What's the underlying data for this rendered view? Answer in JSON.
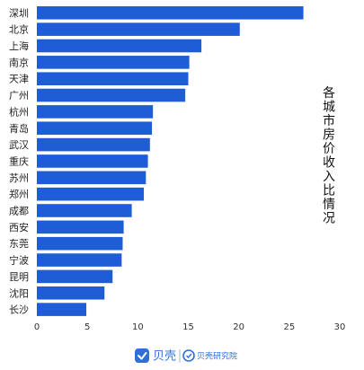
{
  "chart_data": {
    "type": "bar",
    "orientation": "horizontal",
    "title": "各城市房价收入比情况",
    "categories": [
      "深圳",
      "北京",
      "上海",
      "南京",
      "天津",
      "广州",
      "杭州",
      "青岛",
      "武汉",
      "重庆",
      "苏州",
      "郑州",
      "成都",
      "西安",
      "东莞",
      "宁波",
      "昆明",
      "沈阳",
      "长沙"
    ],
    "values": [
      26.4,
      20.1,
      16.3,
      15.1,
      15.0,
      14.7,
      11.5,
      11.4,
      11.2,
      11.0,
      10.8,
      10.6,
      9.4,
      8.6,
      8.5,
      8.4,
      7.5,
      6.7,
      4.9
    ],
    "xlim": [
      0,
      30
    ],
    "xticks": [
      "0",
      "5",
      "10",
      "15",
      "20",
      "25",
      "30"
    ],
    "xlabel": "",
    "ylabel": "",
    "grid": false,
    "legend": "none",
    "bar_color": "#1f5dd6"
  },
  "branding": {
    "logo_main": "贝壳",
    "logo_sub": "贝壳研究院",
    "logo_color": "#2f6fd6",
    "icon_main": "beike-logo-icon",
    "icon_sub": "beike-research-icon"
  }
}
